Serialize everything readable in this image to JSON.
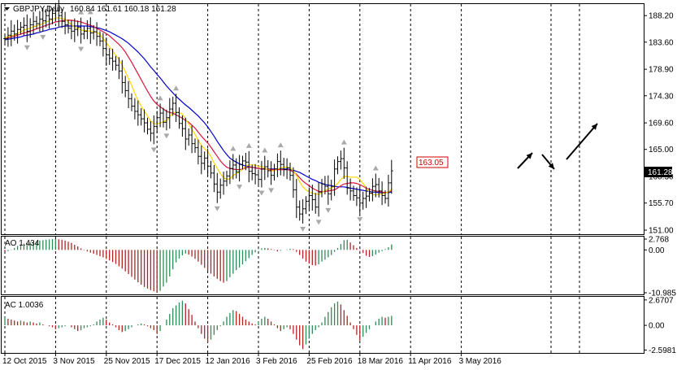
{
  "header": {
    "symbol": "GBPJPY,Daily",
    "ohlc": "160.84 161.61 160.18 161.28"
  },
  "chart_data": {
    "type": "candlestick",
    "title": "",
    "main_panel": {
      "ylim": [
        150.3,
        190.2
      ],
      "yticks": [
        "188.20",
        "183.60",
        "178.90",
        "174.30",
        "169.60",
        "165.00",
        "160.30",
        "155.70",
        "151.00"
      ],
      "yticks_values": [
        188.2,
        183.6,
        178.9,
        174.3,
        169.6,
        165.0,
        160.3,
        155.7,
        151.0
      ],
      "current_price": "161.28",
      "current_price_value": 161.28,
      "annotation": "163.05",
      "annotation_value": 163.05,
      "close": [
        184.2,
        184.8,
        185.5,
        185.0,
        185.8,
        186.2,
        186.5,
        185.5,
        186.6,
        187.2,
        186.8,
        187.6,
        187.3,
        188.2,
        187.6,
        188.6,
        189.0,
        188.2,
        187.2,
        186.6,
        186.0,
        185.5,
        185.8,
        186.2,
        185.0,
        185.5,
        186.0,
        185.2,
        185.4,
        184.6,
        183.8,
        182.5,
        181.4,
        180.8,
        180.3,
        179.6,
        178.6,
        176.6,
        175.2,
        173.8,
        172.5,
        171.6,
        171.0,
        170.3,
        169.6,
        168.5,
        167.8,
        169.0,
        170.5,
        171.3,
        169.7,
        170.5,
        172.0,
        173.0,
        171.4,
        169.5,
        168.6,
        166.8,
        167.5,
        166.0,
        165.3,
        163.8,
        162.6,
        163.5,
        162.1,
        160.9,
        159.0,
        157.6,
        158.8,
        159.5,
        160.4,
        161.7,
        162.3,
        161.1,
        162.4,
        163.0,
        162.8,
        161.2,
        160.8,
        160.6,
        159.8,
        161.6,
        162.0,
        161.3,
        160.5,
        161.6,
        162.9,
        162.4,
        161.5,
        161.8,
        160.5,
        158.0,
        155.0,
        153.8,
        154.7,
        156.0,
        157.0,
        156.3,
        155.0,
        157.6,
        159.0,
        158.6,
        157.3,
        158.6,
        161.6,
        162.9,
        163.4,
        161.8,
        158.3,
        157.8,
        157.0,
        156.6,
        155.7,
        156.5,
        156.9,
        157.4,
        158.6,
        158.9,
        157.8,
        157.0,
        156.5,
        159.2,
        161.28
      ],
      "ma_fast": [
        184.4,
        184.5,
        184.7,
        184.8,
        185.1,
        185.4,
        185.7,
        185.9,
        186.0,
        186.3,
        186.4,
        186.6,
        186.8,
        187.1,
        187.3,
        187.5,
        187.8,
        187.8,
        187.7,
        187.6,
        187.1,
        186.6,
        186.2,
        186.0,
        185.7,
        185.6,
        185.6,
        185.5,
        185.4,
        185.3,
        184.9,
        184.2,
        183.5,
        182.8,
        182.1,
        181.3,
        180.6,
        179.6,
        178.5,
        177.3,
        176.1,
        174.7,
        173.5,
        172.5,
        171.6,
        170.8,
        169.9,
        169.5,
        169.4,
        169.6,
        169.8,
        170.0,
        170.6,
        171.4,
        171.4,
        171.4,
        171.1,
        170.3,
        169.4,
        168.5,
        167.6,
        166.6,
        165.7,
        165.1,
        164.6,
        163.8,
        162.7,
        161.7,
        160.8,
        160.1,
        159.8,
        159.9,
        160.5,
        160.8,
        161.1,
        161.6,
        162.1,
        162.3,
        162.3,
        162.3,
        162.0,
        162.0,
        161.8,
        161.5,
        161.3,
        161.3,
        161.6,
        161.8,
        161.9,
        161.9,
        161.8,
        161.3,
        160.5,
        159.4,
        158.5,
        158.0,
        157.6,
        157.4,
        157.3,
        157.2,
        157.5,
        157.9,
        158.1,
        158.3,
        158.6,
        159.1,
        159.8,
        160.3,
        160.3,
        160.2,
        160.2,
        160.2,
        159.8,
        159.1,
        158.3,
        157.6,
        157.2,
        157.1,
        157.2,
        157.3,
        157.4,
        157.6,
        158.1
      ],
      "ma_mid": [
        184.2,
        184.3,
        184.5,
        184.6,
        184.8,
        185.0,
        185.2,
        185.3,
        185.5,
        185.7,
        185.9,
        186.1,
        186.3,
        186.5,
        186.7,
        186.9,
        187.1,
        187.2,
        187.3,
        187.4,
        187.4,
        187.4,
        187.3,
        187.2,
        187.1,
        186.9,
        186.7,
        186.5,
        186.3,
        186.0,
        185.7,
        185.4,
        185.1,
        184.7,
        184.2,
        183.7,
        183.2,
        182.6,
        181.9,
        181.0,
        180.1,
        179.1,
        178.1,
        177.1,
        176.1,
        175.1,
        174.2,
        173.4,
        172.8,
        172.4,
        172.0,
        171.6,
        171.4,
        171.3,
        171.0,
        170.7,
        170.4,
        170.0,
        169.7,
        169.2,
        168.7,
        168.0,
        167.3,
        166.7,
        166.1,
        165.4,
        164.6,
        163.8,
        163.0,
        162.4,
        161.9,
        161.7,
        161.6,
        161.5,
        161.5,
        161.6,
        161.8,
        161.9,
        161.9,
        161.8,
        161.7,
        161.6,
        161.6,
        161.6,
        161.5,
        161.5,
        161.5,
        161.5,
        161.5,
        161.5,
        161.4,
        161.1,
        160.7,
        160.1,
        159.5,
        159.1,
        158.7,
        158.3,
        158.0,
        157.7,
        157.7,
        157.7,
        157.8,
        157.9,
        158.0,
        158.3,
        158.7,
        159.0,
        159.1,
        159.2,
        159.2,
        159.1,
        158.9,
        158.6,
        158.3,
        158.1,
        157.9,
        157.8,
        157.7,
        157.6,
        157.5,
        157.6,
        157.8
      ],
      "ma_slow": [
        184.0,
        184.1,
        184.2,
        184.3,
        184.4,
        184.5,
        184.7,
        184.8,
        184.9,
        185.0,
        185.2,
        185.3,
        185.5,
        185.6,
        185.8,
        185.9,
        186.0,
        186.2,
        186.3,
        186.4,
        186.4,
        186.4,
        186.4,
        186.4,
        186.4,
        186.4,
        186.4,
        186.3,
        186.2,
        186.1,
        186.0,
        185.8,
        185.6,
        185.4,
        185.1,
        184.8,
        184.5,
        184.2,
        183.8,
        183.4,
        182.9,
        182.4,
        181.9,
        181.3,
        180.7,
        180.0,
        179.3,
        178.7,
        178.0,
        177.4,
        176.7,
        176.0,
        175.4,
        174.8,
        174.2,
        173.7,
        173.2,
        172.7,
        172.3,
        171.8,
        171.3,
        170.8,
        170.2,
        169.6,
        168.9,
        168.1,
        167.3,
        166.4,
        165.6,
        164.8,
        164.1,
        163.5,
        163.1,
        162.8,
        162.5,
        162.3,
        162.1,
        162.0,
        161.9,
        161.8,
        161.7,
        161.6,
        161.6,
        161.6,
        161.6,
        161.6,
        161.6,
        161.6,
        161.6,
        161.6,
        161.5,
        161.4,
        161.2,
        161.0,
        160.7,
        160.4,
        160.1,
        159.8,
        159.6,
        159.3,
        159.1,
        158.9,
        158.8,
        158.7,
        158.6,
        158.5,
        158.5,
        158.5,
        158.4,
        158.3,
        158.2,
        158.1,
        158.0,
        157.9,
        157.8,
        157.7,
        157.6,
        157.6,
        157.5,
        157.5,
        157.5,
        157.5,
        157.6
      ]
    },
    "ao_panel": {
      "label": "AO 1.434",
      "yticks": [
        "2.768",
        "0.00",
        "-10.985"
      ],
      "yticks_values": [
        2.768,
        0.0,
        -10.985
      ],
      "ylim": [
        -11.4,
        3.4
      ],
      "values": [
        -0.5,
        -0.3,
        0.1,
        0.5,
        1.0,
        1.4,
        1.6,
        1.8,
        2.0,
        2.1,
        2.2,
        2.4,
        2.5,
        2.6,
        2.7,
        2.8,
        2.8,
        2.7,
        2.6,
        2.4,
        2.1,
        1.8,
        1.3,
        0.9,
        0.4,
        -0.1,
        -0.4,
        -0.7,
        -1.0,
        -1.3,
        -1.6,
        -1.9,
        -2.3,
        -2.7,
        -3.1,
        -3.6,
        -4.2,
        -4.8,
        -5.5,
        -6.2,
        -6.9,
        -7.6,
        -8.3,
        -8.9,
        -9.5,
        -9.9,
        -10.3,
        -10.6,
        -10.9,
        -10.5,
        -9.4,
        -8.4,
        -6.8,
        -5.0,
        -3.2,
        -2.2,
        -1.4,
        -0.9,
        -1.2,
        -1.7,
        -2.3,
        -3.0,
        -3.8,
        -4.6,
        -5.4,
        -6.1,
        -6.8,
        -7.4,
        -8.0,
        -8.4,
        -8.0,
        -7.0,
        -6.1,
        -5.2,
        -4.5,
        -3.7,
        -2.9,
        -2.1,
        -1.3,
        -0.6,
        0.1,
        0.4,
        0.5,
        0.4,
        0.2,
        -0.1,
        -0.4,
        -0.2,
        0.0,
        0.1,
        0.3,
        0.2,
        -0.5,
        -1.3,
        -2.2,
        -3.0,
        -3.5,
        -3.9,
        -4.0,
        -3.7,
        -3.0,
        -2.5,
        -1.9,
        -1.3,
        -0.5,
        0.5,
        1.5,
        2.5,
        2.6,
        1.9,
        1.2,
        0.5,
        -0.1,
        -0.8,
        -1.5,
        -1.8,
        -1.6,
        -1.2,
        -0.7,
        -0.3,
        0.2,
        0.7,
        1.4
      ]
    },
    "ac_panel": {
      "label": "AC 1.0036",
      "yticks": [
        "2.6707",
        "0.00",
        "-2.5981"
      ],
      "yticks_values": [
        2.6707,
        0.0,
        -2.5981
      ],
      "ylim": [
        -2.9,
        3.0
      ],
      "values": [
        0.9,
        0.7,
        0.6,
        0.5,
        0.4,
        0.5,
        0.4,
        0.3,
        0.4,
        0.3,
        0.2,
        0.3,
        0.1,
        0.0,
        -0.1,
        -0.2,
        -0.4,
        -0.3,
        -0.2,
        -0.1,
        0.0,
        -0.2,
        -0.4,
        -0.6,
        -0.5,
        -0.3,
        -0.2,
        -0.1,
        0.1,
        0.4,
        0.6,
        0.8,
        0.6,
        0.3,
        0.1,
        -0.2,
        -0.5,
        -0.7,
        -0.6,
        -0.4,
        -0.2,
        0.0,
        0.1,
        0.2,
        0.1,
        -0.1,
        -0.3,
        -0.5,
        -0.9,
        -0.6,
        0.0,
        0.6,
        1.2,
        1.8,
        2.1,
        2.4,
        2.6,
        2.3,
        1.7,
        1.1,
        0.4,
        -0.3,
        -0.9,
        -1.4,
        -1.8,
        -1.5,
        -1.0,
        -0.5,
        -0.1,
        0.4,
        0.9,
        1.3,
        1.6,
        1.5,
        1.2,
        0.9,
        0.6,
        0.4,
        0.2,
        0.1,
        0.4,
        0.7,
        0.9,
        0.7,
        0.4,
        0.1,
        -0.3,
        -0.6,
        -0.4,
        -0.2,
        -0.4,
        -0.9,
        -1.5,
        -2.1,
        -2.5,
        -2.0,
        -1.4,
        -0.9,
        -0.5,
        -0.2,
        0.3,
        0.9,
        1.4,
        1.9,
        2.3,
        2.5,
        2.2,
        1.6,
        1.0,
        0.3,
        -0.4,
        -1.0,
        -1.6,
        -1.2,
        -0.8,
        -0.4,
        0.0,
        0.4,
        0.7,
        0.9,
        0.8,
        0.9,
        1.0
      ]
    },
    "x_tick_labels": [
      "12 Oct 2015",
      "3 Nov 2015",
      "25 Nov 2015",
      "17 Dec 2015",
      "12 Jan 2016",
      "3 Feb 2016",
      "25 Feb 2016",
      "18 Mar 2016",
      "11 Apr 2016",
      "3 May 2016"
    ],
    "x_tick_indices": [
      0,
      16,
      32,
      48,
      64,
      80,
      96,
      112,
      128,
      144
    ],
    "forecast": "arrows",
    "grid": true
  },
  "colors": {
    "ma_fast": "#ffd700",
    "ma_mid": "#dc143c",
    "ma_slow": "#0000cd",
    "ao_up": "#2e8b57",
    "ao_down": "#b22222",
    "annotation": "#d00000",
    "bars": "#000000",
    "grid": "#000000",
    "fractal": "#a9a9a9"
  }
}
